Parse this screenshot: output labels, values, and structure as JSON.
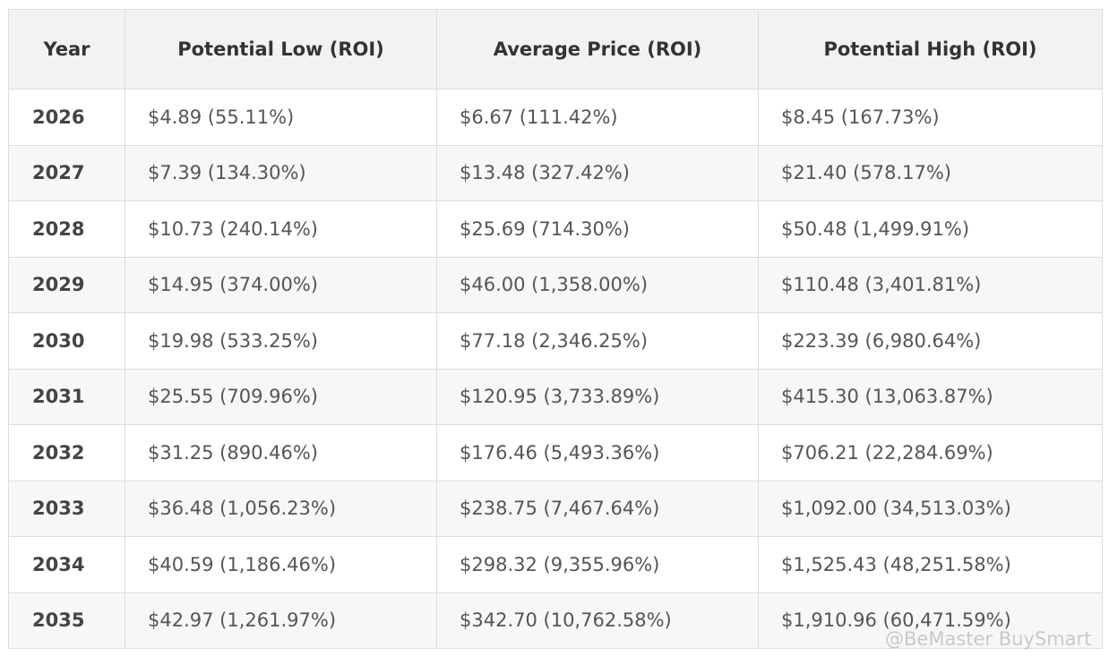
{
  "table": {
    "header": [
      "Year",
      "Potential Low (ROI)",
      "Average Price (ROI)",
      "Potential High (ROI)"
    ],
    "rows": [
      [
        "2026",
        "$4.89 (55.11%)",
        "$6.67 (111.42%)",
        "$8.45 (167.73%)"
      ],
      [
        "2027",
        "$7.39 (134.30%)",
        "$13.48 (327.42%)",
        "$21.40 (578.17%)"
      ],
      [
        "2028",
        "$10.73 (240.14%)",
        "$25.69 (714.30%)",
        "$50.48 (1,499.91%)"
      ],
      [
        "2029",
        "$14.95 (374.00%)",
        "$46.00 (1,358.00%)",
        "$110.48 (3,401.81%)"
      ],
      [
        "2030",
        "$19.98 (533.25%)",
        "$77.18 (2,346.25%)",
        "$223.39 (6,980.64%)"
      ],
      [
        "2031",
        "$25.55 (709.96%)",
        "$120.95 (3,733.89%)",
        "$415.30 (13,063.87%)"
      ],
      [
        "2032",
        "$31.25 (890.46%)",
        "$176.46 (5,493.36%)",
        "$706.21 (22,284.69%)"
      ],
      [
        "2033",
        "$36.48 (1,056.23%)",
        "$238.75 (7,467.64%)",
        "$1,092.00 (34,513.03%)"
      ],
      [
        "2034",
        "$40.59 (1,186.46%)",
        "$298.32 (9,355.96%)",
        "$1,525.43 (48,251.58%)"
      ],
      [
        "2035",
        "$42.97 (1,261.97%)",
        "$342.70 (10,762.58%)",
        "$1,910.96 (60,471.59%)"
      ]
    ]
  },
  "watermark": "@BeMaster BuySmart"
}
